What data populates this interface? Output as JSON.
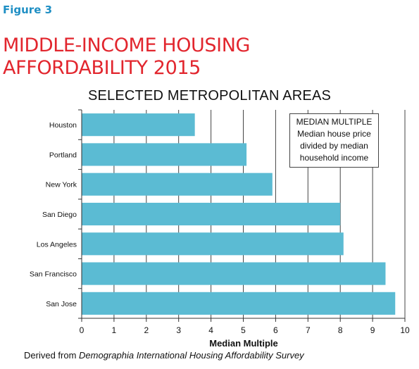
{
  "figure_label": "Figure 3",
  "title_lines": [
    "MIDDLE-INCOME HOUSING",
    "AFFORDABILITY 2015"
  ],
  "colors": {
    "bar": "#5bbbd3",
    "title": "#e2262e",
    "figure_label": "#1f8fc4"
  },
  "chart_data": {
    "type": "bar",
    "orientation": "horizontal",
    "title": "SELECTED METROPOLITAN AREAS",
    "categories": [
      "Houston",
      "Portland",
      "New York",
      "San Diego",
      "Los Angeles",
      "San Francisco",
      "San Jose"
    ],
    "values": [
      3.5,
      5.1,
      5.9,
      8.0,
      8.1,
      9.4,
      9.7
    ],
    "xlabel": "Median Multiple",
    "ylabel": "",
    "xlim": [
      0,
      10
    ],
    "xticks": [
      0,
      1,
      2,
      3,
      4,
      5,
      6,
      7,
      8,
      9,
      10
    ],
    "grid": "vertical",
    "legend_placement": "top-right",
    "annotation": [
      "MEDIAN MULTIPLE",
      "Median house price",
      "divided by median",
      "household income"
    ]
  },
  "source": {
    "prefix": "Derived from ",
    "italic": "Demographia International Housing Affordability Survey"
  }
}
